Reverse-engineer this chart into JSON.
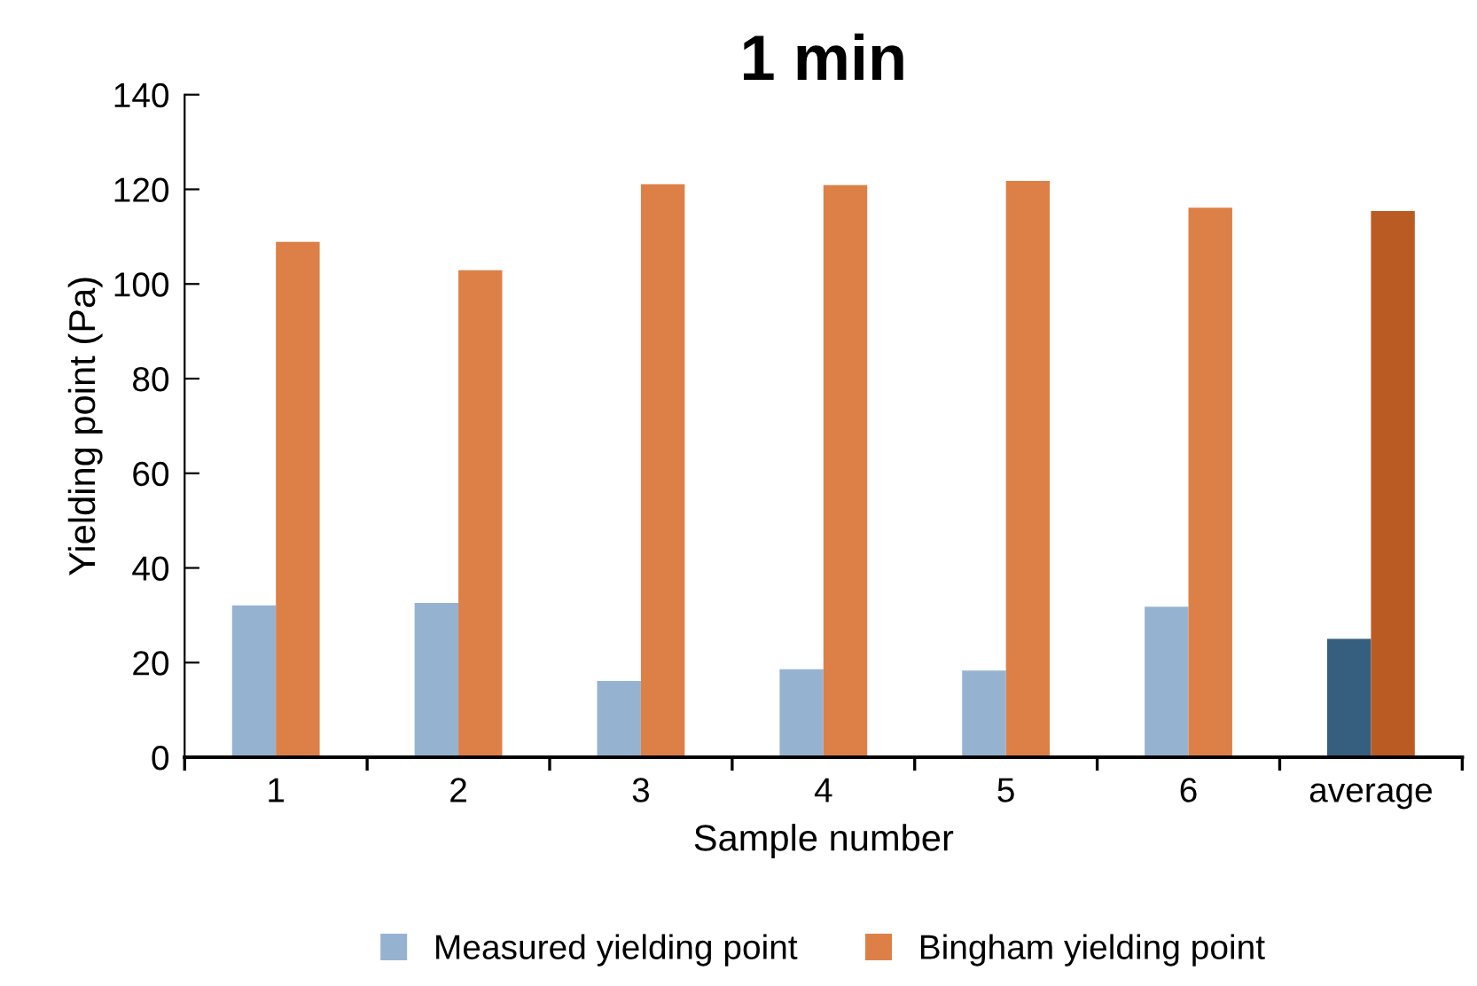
{
  "chart_data": {
    "type": "bar",
    "title": "1 min",
    "xlabel": "Sample number",
    "ylabel": "Yielding point (Pa)",
    "categories": [
      "1",
      "2",
      "3",
      "4",
      "5",
      "6",
      "average"
    ],
    "series": [
      {
        "name": "Measured yielding point",
        "color": "#95b3d1",
        "colors": [
          "#95b3d1",
          "#95b3d1",
          "#95b3d1",
          "#95b3d1",
          "#95b3d1",
          "#95b3d1",
          "#365e7f"
        ],
        "values": [
          32.1,
          32.6,
          16.1,
          18.6,
          18.3,
          31.8,
          25.0
        ]
      },
      {
        "name": "Bingham yielding point",
        "color": "#dd8047",
        "colors": [
          "#dd8047",
          "#dd8047",
          "#dd8047",
          "#dd8047",
          "#dd8047",
          "#dd8047",
          "#bb5b24"
        ],
        "values": [
          108.9,
          102.9,
          121.1,
          120.9,
          121.8,
          116.1,
          115.4
        ]
      }
    ],
    "ylim": [
      0,
      140
    ],
    "yticks": [
      0,
      20,
      40,
      60,
      80,
      100,
      120,
      140
    ],
    "grid": false,
    "legend": "bottom"
  }
}
